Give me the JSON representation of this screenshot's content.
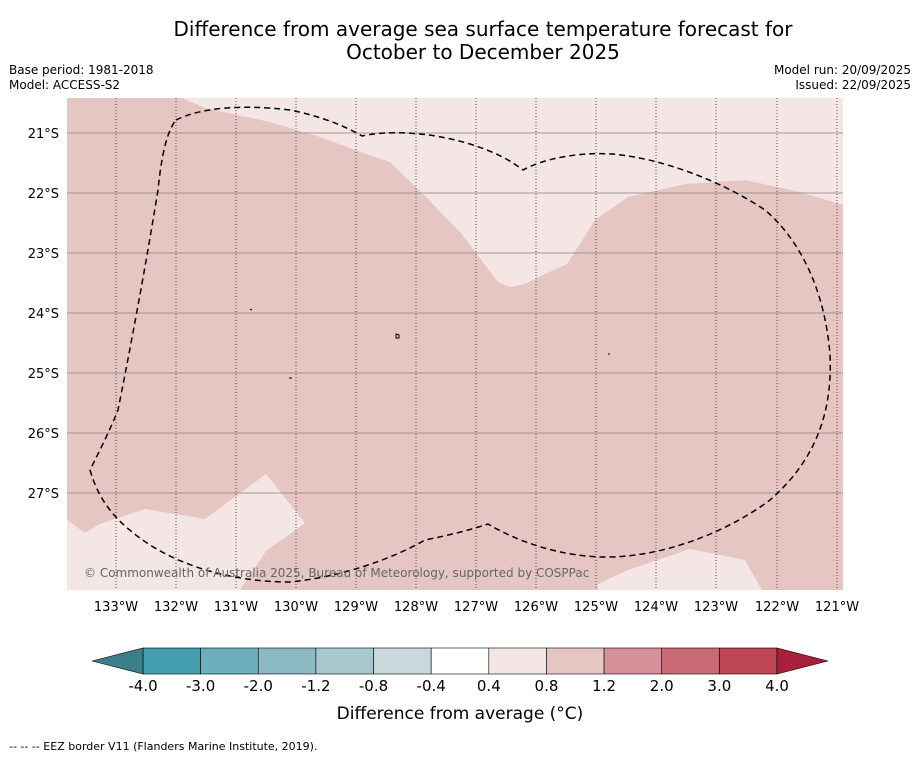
{
  "title_line1": "Difference from average sea surface temperature forecast for",
  "title_line2": "October to December 2025",
  "base_period": "Base period: 1981-2018",
  "model": "Model: ACCESS-S2",
  "model_run": "Model run: 20/09/2025",
  "issued": "Issued: 22/09/2025",
  "copyright": "© Commonwealth of Australia 2025, Bureau of Meteorology, supported by COSPPac",
  "lat_ticks": [
    "21°S",
    "22°S",
    "23°S",
    "24°S",
    "25°S",
    "26°S",
    "27°S"
  ],
  "lon_ticks": [
    "133°W",
    "132°W",
    "131°W",
    "130°W",
    "129°W",
    "128°W",
    "127°W",
    "126°W",
    "125°W",
    "124°W",
    "123°W",
    "122°W",
    "121°W"
  ],
  "colorbar": {
    "labels": [
      "-4.0",
      "-3.0",
      "-2.0",
      "-1.2",
      "-0.8",
      "-0.4",
      "0.4",
      "0.8",
      "1.2",
      "2.0",
      "3.0",
      "4.0"
    ],
    "colors": [
      "#44a0b1",
      "#6caebb",
      "#8db9c3",
      "#a9c8cd",
      "#cad8dc",
      "#ffffff",
      "#f4e6e5",
      "#e6c6c2",
      "#d7909a",
      "#c96a76",
      "#be4656"
    ],
    "under_color": "#3b7f8c",
    "over_color": "#a8213c",
    "title": "Difference from average (°C)"
  },
  "map_colors": {
    "band_0_4_0_8": "#f4e6e5",
    "band_0_8_1_2": "#e6c6c2"
  },
  "footer": "--  --  -- EEZ border V11 (Flanders Marine Institute, 2019)."
}
